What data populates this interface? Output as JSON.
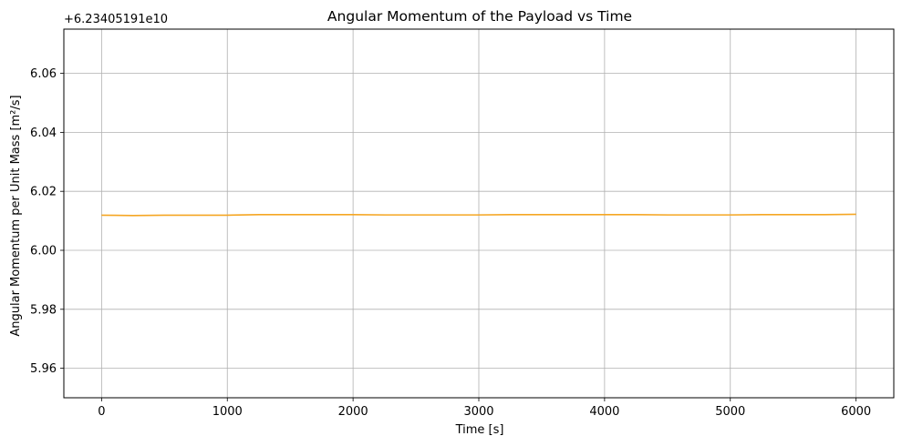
{
  "chart_data": {
    "type": "line",
    "title": "Angular Momentum of the Payload vs Time",
    "xlabel": "Time [s]",
    "ylabel": "Angular Momentum per Unit Mass [m²/s]",
    "y_offset_text": "+6.23405191e10",
    "xlim": [
      -300,
      6300
    ],
    "ylim": [
      5.95,
      6.075
    ],
    "x_ticks": [
      0,
      1000,
      2000,
      3000,
      4000,
      5000,
      6000
    ],
    "x_tick_labels": [
      "0",
      "1000",
      "2000",
      "3000",
      "4000",
      "5000",
      "6000"
    ],
    "y_ticks": [
      5.96,
      5.98,
      6.0,
      6.02,
      6.04,
      6.06
    ],
    "y_tick_labels": [
      "5.96",
      "5.98",
      "6.00",
      "6.02",
      "6.04",
      "6.06"
    ],
    "grid": true,
    "series": [
      {
        "color": "#f5a623",
        "x": [
          0,
          250,
          500,
          750,
          1000,
          1250,
          1500,
          1750,
          2000,
          2250,
          2500,
          2750,
          3000,
          3250,
          3500,
          3750,
          4000,
          4250,
          4500,
          4750,
          5000,
          5250,
          5500,
          5750,
          6000
        ],
        "y": [
          6.0119,
          6.0118,
          6.0119,
          6.0119,
          6.0119,
          6.0121,
          6.0121,
          6.0121,
          6.0121,
          6.012,
          6.012,
          6.012,
          6.012,
          6.0121,
          6.0121,
          6.0121,
          6.0121,
          6.0121,
          6.012,
          6.012,
          6.012,
          6.0121,
          6.0121,
          6.0121,
          6.0122
        ]
      }
    ]
  }
}
